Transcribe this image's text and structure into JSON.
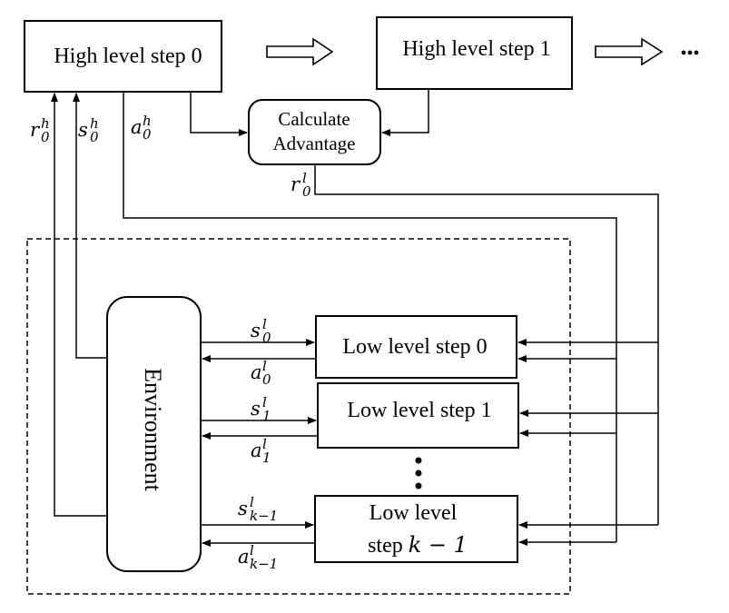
{
  "boxes": {
    "high_step_0": "High level step 0",
    "high_step_1": "High level step 1",
    "calc_line1": "Calculate",
    "calc_line2": "Advantage",
    "environment": "Environment",
    "low_step_0": "Low level step 0",
    "low_step_1": "Low level step 1",
    "low_step_k_line1": "Low level",
    "low_step_k_line2_prefix": "step ",
    "low_step_k_line2_math": "k − 1"
  },
  "ellipsis": "•••",
  "labels": {
    "r0h": {
      "base": "r",
      "sup": "h",
      "sub": "0"
    },
    "s0h": {
      "base": "s",
      "sup": "h",
      "sub": "0"
    },
    "a0h": {
      "base": "a",
      "sup": "h",
      "sub": "0"
    },
    "r0l": {
      "base": "r",
      "sup": "l",
      "sub": "0"
    },
    "s0l": {
      "base": "s",
      "sup": "l",
      "sub": "0"
    },
    "a0l": {
      "base": "a",
      "sup": "l",
      "sub": "0"
    },
    "s1l": {
      "base": "s",
      "sup": "l",
      "sub": "1"
    },
    "a1l": {
      "base": "a",
      "sup": "l",
      "sub": "1"
    },
    "skl": {
      "base": "s",
      "sup": "l",
      "sub": "k−1"
    },
    "akl": {
      "base": "a",
      "sup": "l",
      "sub": "k−1"
    }
  }
}
